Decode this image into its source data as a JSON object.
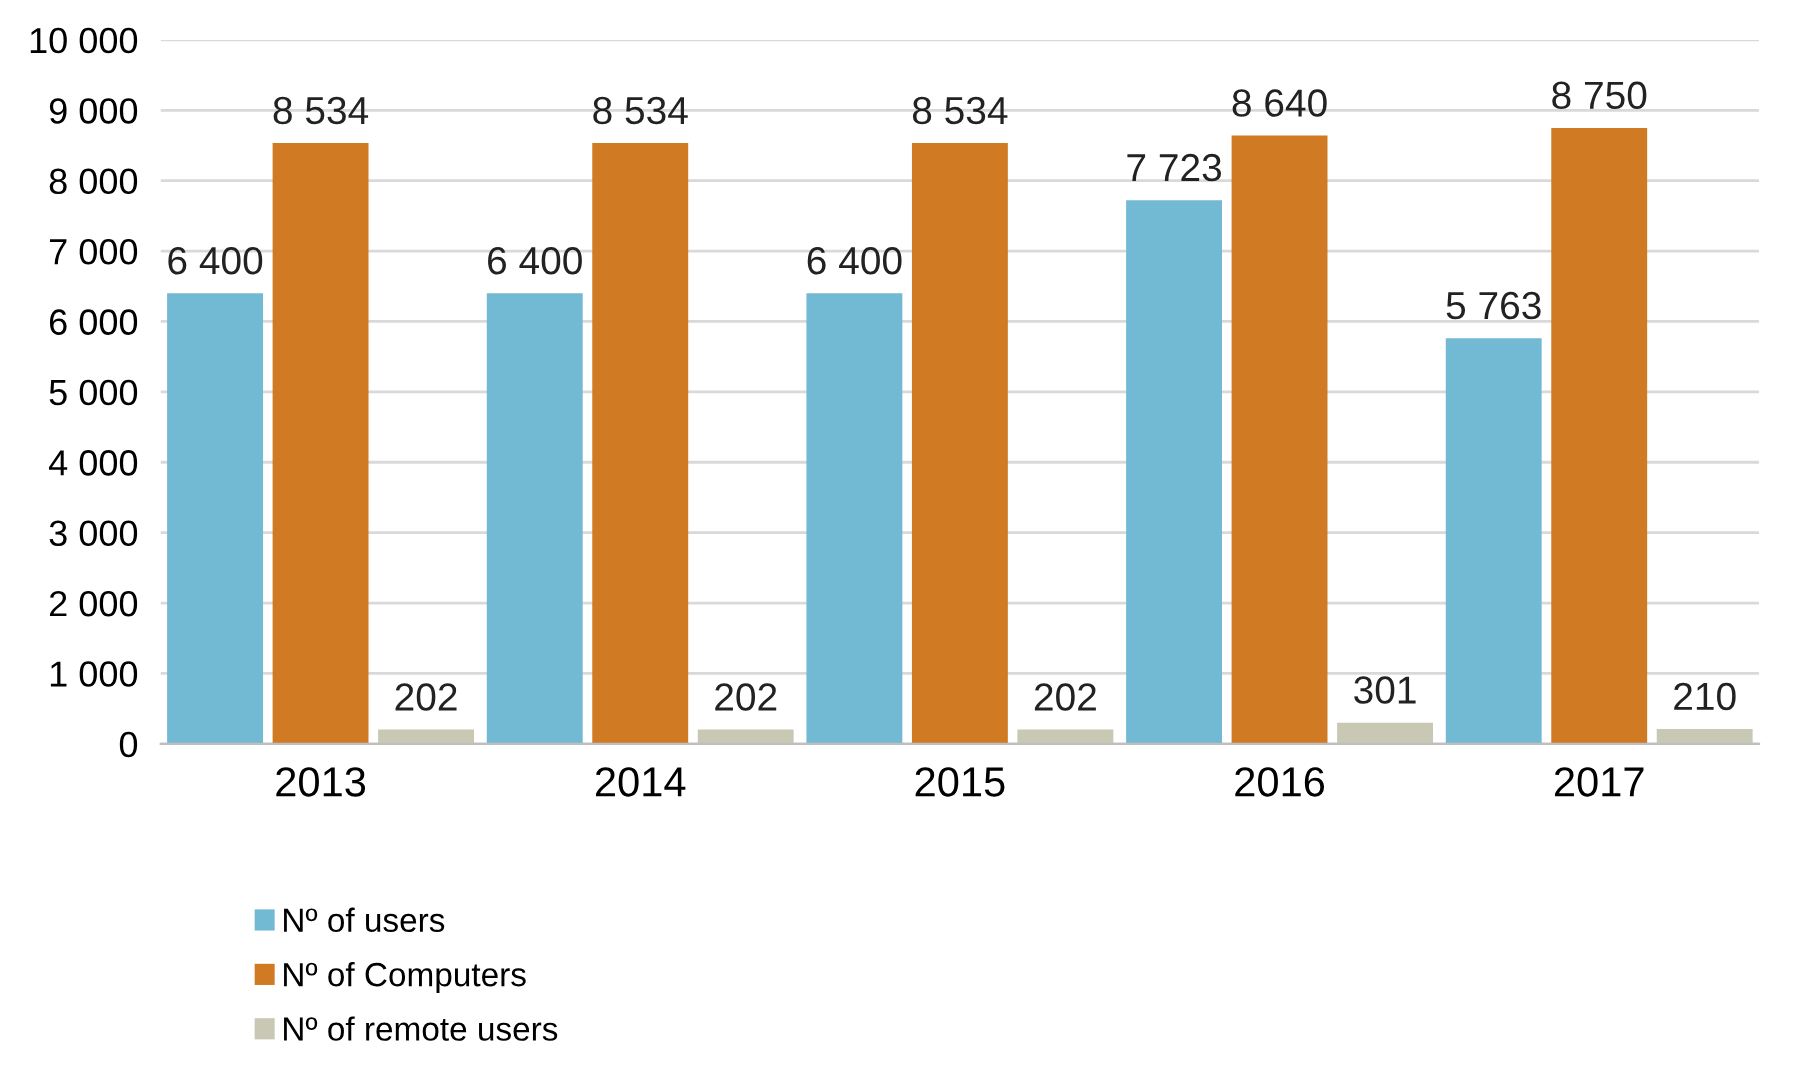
{
  "chart_data": {
    "type": "bar",
    "categories": [
      "2013",
      "2014",
      "2015",
      "2016",
      "2017"
    ],
    "series": [
      {
        "name": "Nº of users",
        "color": "#72b9d3",
        "values": [
          6400,
          6400,
          6400,
          7723,
          5763
        ],
        "value_labels": [
          "6 400",
          "6 400",
          "6 400",
          "7 723",
          "5 763"
        ]
      },
      {
        "name": "Nº of Computers",
        "color": "#d07a24",
        "values": [
          8534,
          8534,
          8534,
          8640,
          8750
        ],
        "value_labels": [
          "8 534",
          "8 534",
          "8 534",
          "8 640",
          "8 750"
        ]
      },
      {
        "name": "Nº of remote users",
        "color": "#c8c8b4",
        "values": [
          202,
          202,
          202,
          301,
          210
        ],
        "value_labels": [
          "202",
          "202",
          "202",
          "301",
          "210"
        ]
      }
    ],
    "ylim": [
      0,
      10000
    ],
    "yticks": [
      0,
      {
        "value": 1000,
        "label": "1 000"
      },
      {
        "value": 2000,
        "label": "2 000"
      },
      {
        "value": 3000,
        "label": "3 000"
      },
      {
        "value": 4000,
        "label": "4 000"
      },
      {
        "value": 5000,
        "label": "5 000"
      },
      {
        "value": 6000,
        "label": "6 000"
      },
      {
        "value": 7000,
        "label": "7 000"
      },
      {
        "value": 8000,
        "label": "8 000"
      },
      {
        "value": 9000,
        "label": "9 000"
      },
      {
        "value": 10000,
        "label": "10 000"
      }
    ],
    "grid": "y",
    "legend": "bottom left"
  }
}
